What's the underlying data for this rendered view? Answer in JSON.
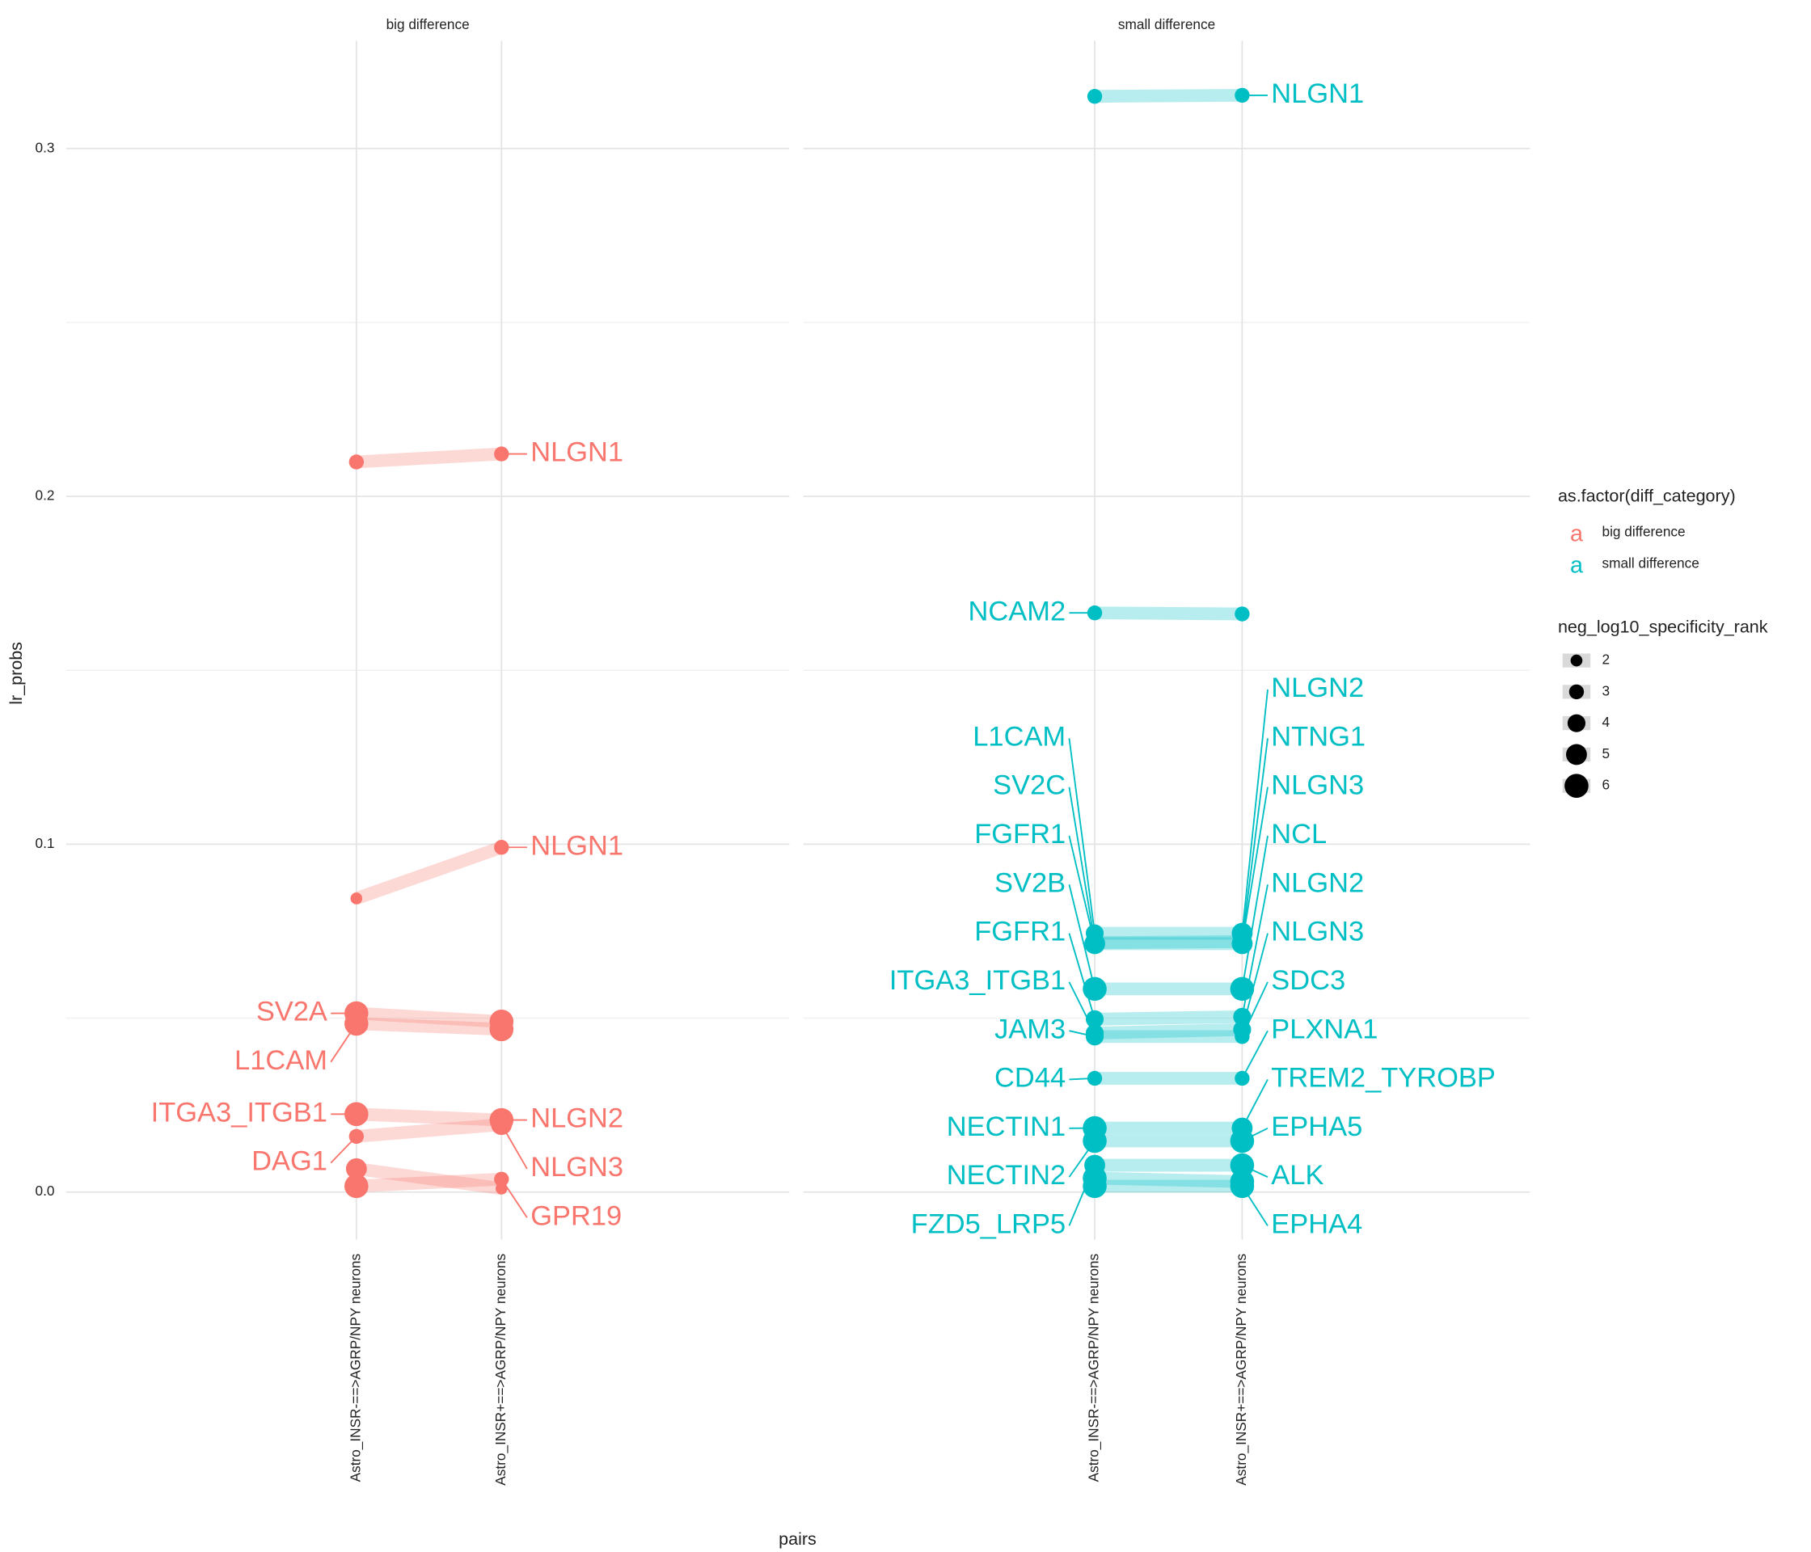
{
  "chart_data": {
    "type": "dumbbell",
    "y_label": "lr_probs",
    "x_label": "pairs",
    "ylim": [
      -0.0137,
      0.331
    ],
    "yticks": [
      {
        "value": 0,
        "label": "0.0"
      },
      {
        "value": 0.1,
        "label": "0.1"
      },
      {
        "value": 0.2,
        "label": "0.2"
      },
      {
        "value": 0.3,
        "label": "0.3"
      }
    ],
    "minor_yticks": [
      0.05,
      0.15,
      0.25
    ],
    "grid": true,
    "categories": [
      "Astro_INSR-==>AGRP/NPY neurons",
      "Astro_INSR+==>AGRP/NPY neurons"
    ],
    "panels": [
      {
        "title": "big difference",
        "color": "#F8766D",
        "segments": [
          {
            "values": [
              0.2099,
              0.2122
            ],
            "sizes": [
              3,
              3
            ],
            "right_label": "NLGN1"
          },
          {
            "values": [
              0.0844,
              0.0991
            ],
            "sizes": [
              2,
              3
            ],
            "right_label": "NLGN1"
          },
          {
            "values": [
              0.0514,
              0.049
            ],
            "sizes": [
              6,
              6
            ],
            "left_label": "SV2A"
          },
          {
            "values": [
              0.0484,
              0.0468
            ],
            "sizes": [
              6,
              6
            ],
            "left_label": "L1CAM"
          },
          {
            "values": [
              0.0224,
              0.0207
            ],
            "sizes": [
              6,
              6
            ],
            "left_label": "ITGA3_ITGB1",
            "right_label": "NLGN2"
          },
          {
            "values": [
              0.016,
              0.0194
            ],
            "sizes": [
              3,
              5
            ],
            "left_label": "DAG1",
            "right_label": "NLGN3"
          },
          {
            "values": [
              0.0017,
              0.0037
            ],
            "sizes": [
              6,
              3
            ],
            "right_label": "GPR19"
          },
          {
            "values": [
              0.0067,
              0.001
            ],
            "sizes": [
              5,
              2
            ]
          }
        ]
      },
      {
        "title": "small difference",
        "color": "#00BFC4",
        "segments": [
          {
            "values": [
              0.315,
              0.3153
            ],
            "sizes": [
              3,
              3
            ],
            "right_label": "NLGN1"
          },
          {
            "values": [
              0.1665,
              0.1662
            ],
            "sizes": [
              3,
              3
            ],
            "left_label": "NCAM2"
          },
          {
            "values": [
              0.0744,
              0.0744
            ],
            "sizes": [
              4,
              5
            ],
            "left_label": "L1CAM",
            "right_label": "NLGN2"
          },
          {
            "values": [
              0.0714,
              0.0714
            ],
            "sizes": [
              5,
              5
            ],
            "left_label": "FGFR1",
            "right_label": "NLGN3"
          },
          {
            "values": [
              0.0717,
              0.072
            ],
            "sizes": [
              4,
              4
            ],
            "left_label": "SV2C",
            "right_label": "NTNG1"
          },
          {
            "values": [
              0.0584,
              0.0584
            ],
            "sizes": [
              6,
              6
            ],
            "left_label": "SV2B",
            "right_label": "NCL"
          },
          {
            "values": [
              0.0497,
              0.0504
            ],
            "sizes": [
              4,
              4
            ],
            "left_label": "FGFR1",
            "right_label": "NLGN2"
          },
          {
            "values": [
              0.0457,
              0.0467
            ],
            "sizes": [
              4,
              4
            ],
            "left_label": "ITGA3_ITGB1",
            "right_label": "NLGN3"
          },
          {
            "values": [
              0.0447,
              0.0447
            ],
            "sizes": [
              4,
              3
            ],
            "left_label": "JAM3",
            "right_label": "SDC3"
          },
          {
            "values": [
              0.0327,
              0.0327
            ],
            "sizes": [
              3,
              3
            ],
            "left_label": "CD44",
            "right_label": "PLXNA1"
          },
          {
            "values": [
              0.0184,
              0.0184
            ],
            "sizes": [
              6,
              5
            ],
            "left_label": "NECTIN1",
            "right_label": "TREM2_TYROBP"
          },
          {
            "values": [
              0.0147,
              0.0147
            ],
            "sizes": [
              6,
              6
            ],
            "left_label": "NECTIN2",
            "right_label": "EPHA5"
          },
          {
            "values": [
              0.0077,
              0.0077
            ],
            "sizes": [
              5,
              6
            ],
            "left_label": "FZD5_LRP5",
            "right_label": "ALK"
          },
          {
            "values": [
              0.0017,
              0.0017
            ],
            "sizes": [
              6,
              6
            ],
            "right_label": "EPHA4"
          },
          {
            "values": [
              0.004,
              0.003
            ],
            "sizes": [
              6,
              6
            ]
          }
        ]
      }
    ],
    "color_legend": {
      "title": "as.factor(diff_category)",
      "key_glyph": "a",
      "entries": [
        {
          "name": "big difference",
          "color": "#F8766D"
        },
        {
          "name": "small difference",
          "color": "#00BFC4"
        }
      ]
    },
    "size_legend": {
      "title": "neg_log10_specificity_rank",
      "values": [
        2,
        3,
        4,
        5,
        6
      ]
    }
  }
}
